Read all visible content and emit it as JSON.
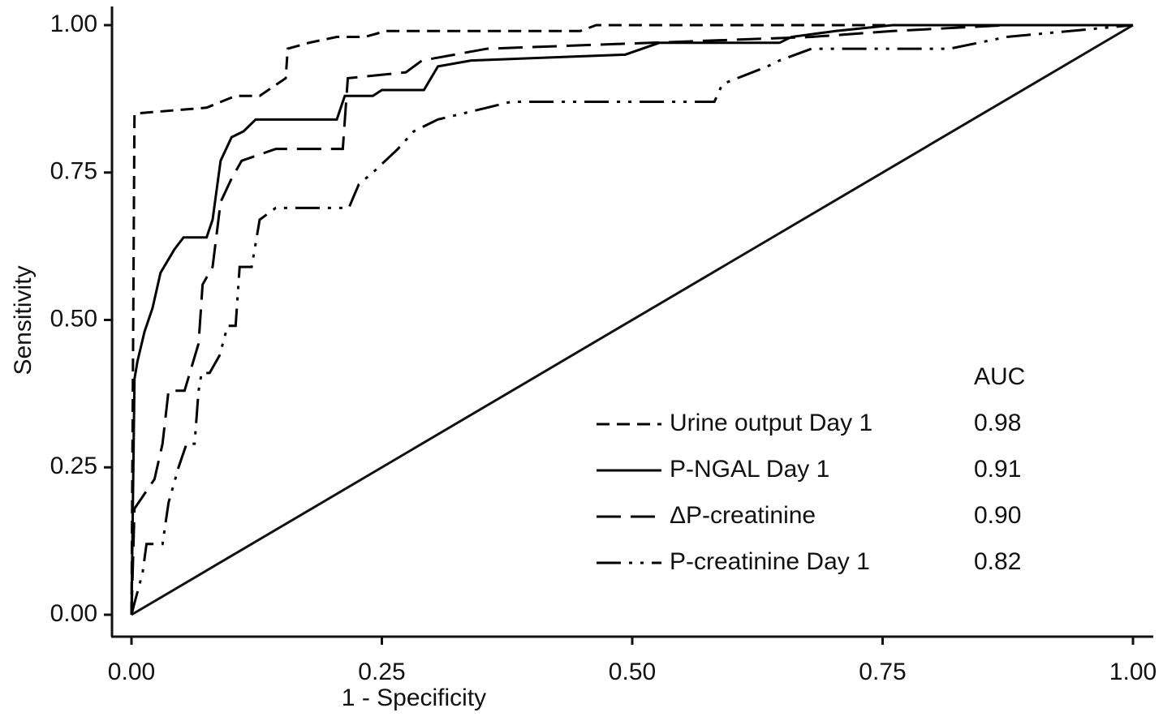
{
  "chart_data": {
    "type": "line",
    "xlabel": "1 - Specificity",
    "ylabel": "Sensitivity",
    "legend_header": "AUC",
    "xlim": [
      0,
      1
    ],
    "ylim": [
      0,
      1
    ],
    "xticks": [
      {
        "value": 0,
        "label": "0.00"
      },
      0.25,
      {
        "value": 0.5,
        "label": "0.50"
      },
      0.75,
      {
        "value": 1,
        "label": "1.00"
      }
    ],
    "yticks": [
      {
        "value": 0,
        "label": "0.00"
      },
      0.25,
      {
        "value": 0.5,
        "label": "0.50"
      },
      0.75,
      {
        "value": 1,
        "label": "1.00"
      }
    ],
    "reference_diagonal": true,
    "series": [
      {
        "name": "Urine output Day 1",
        "auc": "0.98",
        "color": "#000000",
        "x": [
          0,
          0.003,
          0.075,
          0.104,
          0.128,
          0.154,
          0.156,
          0.177,
          0.205,
          0.233,
          0.254,
          0.448,
          0.464,
          1
        ],
        "values": [
          0,
          0.85,
          0.86,
          0.88,
          0.88,
          0.91,
          0.96,
          0.97,
          0.98,
          0.98,
          0.99,
          0.99,
          1,
          1
        ]
      },
      {
        "name": "P-NGAL Day 1",
        "auc": "0.91",
        "color": "#000000",
        "x": [
          0,
          0.003,
          0.006,
          0.013,
          0.021,
          0.029,
          0.043,
          0.052,
          0.075,
          0.081,
          0.089,
          0.1,
          0.112,
          0.124,
          0.205,
          0.213,
          0.241,
          0.25,
          0.292,
          0.306,
          0.339,
          0.493,
          0.527,
          0.647,
          0.659,
          0.703,
          0.76,
          1
        ],
        "values": [
          0,
          0.4,
          0.43,
          0.48,
          0.52,
          0.58,
          0.62,
          0.64,
          0.64,
          0.67,
          0.77,
          0.81,
          0.82,
          0.84,
          0.84,
          0.88,
          0.88,
          0.89,
          0.89,
          0.93,
          0.94,
          0.95,
          0.97,
          0.97,
          0.98,
          0.99,
          1,
          1
        ]
      },
      {
        "name": "ΔP-creatinine",
        "auc": "0.90",
        "color": "#000000",
        "x": [
          0,
          0.003,
          0.011,
          0.023,
          0.031,
          0.037,
          0.053,
          0.067,
          0.071,
          0.081,
          0.089,
          0.1,
          0.11,
          0.144,
          0.211,
          0.216,
          0.274,
          0.29,
          0.355,
          0.679,
          0.76,
          0.874,
          1
        ],
        "values": [
          0,
          0.18,
          0.2,
          0.23,
          0.29,
          0.38,
          0.38,
          0.46,
          0.56,
          0.59,
          0.7,
          0.74,
          0.77,
          0.79,
          0.79,
          0.91,
          0.92,
          0.94,
          0.96,
          0.98,
          0.99,
          1,
          1
        ]
      },
      {
        "name": "P-creatinine Day 1",
        "auc": "0.82",
        "color": "#000000",
        "x": [
          0,
          0.003,
          0.011,
          0.015,
          0.031,
          0.037,
          0.047,
          0.055,
          0.063,
          0.067,
          0.07,
          0.078,
          0.088,
          0.096,
          0.104,
          0.108,
          0.12,
          0.128,
          0.144,
          0.217,
          0.227,
          0.241,
          0.266,
          0.282,
          0.306,
          0.355,
          0.379,
          0.582,
          0.59,
          0.635,
          0.647,
          0.679,
          0.817,
          0.874,
          1
        ],
        "values": [
          0,
          0.02,
          0.07,
          0.12,
          0.12,
          0.19,
          0.25,
          0.29,
          0.29,
          0.38,
          0.41,
          0.41,
          0.44,
          0.49,
          0.49,
          0.59,
          0.59,
          0.67,
          0.69,
          0.69,
          0.73,
          0.75,
          0.79,
          0.82,
          0.84,
          0.86,
          0.87,
          0.87,
          0.9,
          0.93,
          0.94,
          0.96,
          0.96,
          0.98,
          1
        ]
      }
    ]
  }
}
